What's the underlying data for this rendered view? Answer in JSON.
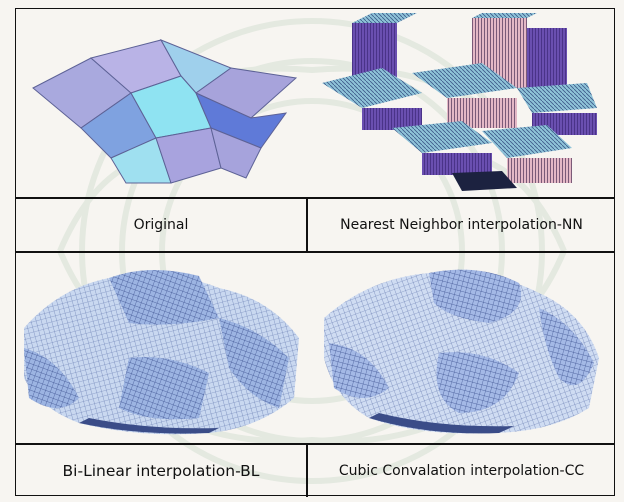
{
  "captions": {
    "original": "Original",
    "nearest": "Nearest Neighbor interpolation-NN",
    "bilinear": "Bi-Linear interpolation-BL",
    "cubic": "Cubic Convalation interpolation-CC"
  },
  "colors": {
    "border": "#111111",
    "background": "#f7f5f1",
    "watermark": "#e6ebe4"
  }
}
